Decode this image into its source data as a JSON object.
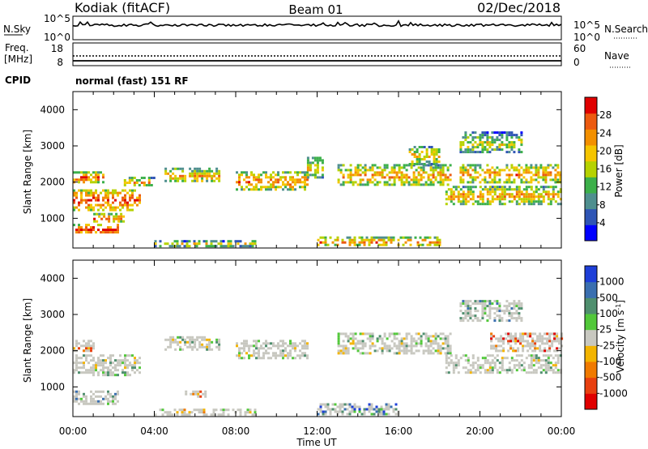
{
  "header": {
    "site": "Kodiak (fitACF)",
    "beam": "Beam 01",
    "date": "02/Dec/2018"
  },
  "noise_panel": {
    "left_label": "N.Sky",
    "left_ticks": [
      "10^5",
      "10^0"
    ],
    "right_label": "N.Search",
    "right_ticks": [
      "10^5",
      "10^0"
    ]
  },
  "freq_panel": {
    "left_label_1": "Freq.",
    "left_label_2": "[MHz]",
    "left_ticks": [
      "18",
      "8"
    ],
    "right_label": "Nave",
    "right_ticks": [
      "60",
      "0"
    ]
  },
  "cpid": {
    "label": "CPID",
    "text": "normal (fast) 151 RF"
  },
  "chart_data": [
    {
      "type": "heatmap",
      "name": "Power",
      "ylabel": "Slant Range [km]",
      "xlabel": "",
      "ylim": [
        180,
        4500
      ],
      "yticks": [
        1000,
        2000,
        3000,
        4000
      ],
      "xlim": [
        0,
        24
      ],
      "xticks": [
        0,
        4,
        8,
        12,
        16,
        20,
        24
      ],
      "colorbar": {
        "label": "Power [dB]",
        "ticks": [
          "4",
          "8",
          "12",
          "16",
          "20",
          "24",
          "28"
        ],
        "colors": [
          "#0000ff",
          "#2f55b5",
          "#4f8f8f",
          "#3cb04a",
          "#b6d200",
          "#f5c500",
          "#f39000",
          "#ec5a10",
          "#e00000"
        ]
      },
      "bands": [
        {
          "x0": 0,
          "x1": 3.3,
          "y0": 1250,
          "y1": 1800,
          "level": 0.7
        },
        {
          "x0": 0,
          "x1": 1.5,
          "y0": 2000,
          "y1": 2300,
          "level": 0.65
        },
        {
          "x0": 0,
          "x1": 2.2,
          "y0": 600,
          "y1": 850,
          "level": 0.8
        },
        {
          "x0": 1.0,
          "x1": 2.5,
          "y0": 900,
          "y1": 1150,
          "level": 0.55
        },
        {
          "x0": 2.5,
          "x1": 4.0,
          "y0": 1900,
          "y1": 2150,
          "level": 0.45
        },
        {
          "x0": 4.5,
          "x1": 7.2,
          "y0": 2000,
          "y1": 2400,
          "level": 0.4
        },
        {
          "x0": 8.0,
          "x1": 11.5,
          "y0": 1800,
          "y1": 2300,
          "level": 0.55
        },
        {
          "x0": 11.5,
          "x1": 12.3,
          "y0": 2100,
          "y1": 2700,
          "level": 0.3
        },
        {
          "x0": 13.0,
          "x1": 18.5,
          "y0": 1900,
          "y1": 2500,
          "level": 0.45
        },
        {
          "x0": 16.5,
          "x1": 18.0,
          "y0": 2500,
          "y1": 3000,
          "level": 0.35
        },
        {
          "x0": 18.3,
          "x1": 24.0,
          "y0": 1400,
          "y1": 1900,
          "level": 0.45
        },
        {
          "x0": 19.0,
          "x1": 24.0,
          "y0": 2000,
          "y1": 2500,
          "level": 0.5
        },
        {
          "x0": 19.0,
          "x1": 22.0,
          "y0": 2800,
          "y1": 3400,
          "level": 0.2
        },
        {
          "x0": 4.0,
          "x1": 9.0,
          "y0": 250,
          "y1": 400,
          "level": 0.3
        },
        {
          "x0": 12.0,
          "x1": 18.0,
          "y0": 250,
          "y1": 500,
          "level": 0.55
        }
      ]
    },
    {
      "type": "heatmap",
      "name": "Velocity",
      "ylabel": "Slant Range [km]",
      "xlabel": "Time UT",
      "ylim": [
        180,
        4500
      ],
      "yticks": [
        1000,
        2000,
        3000,
        4000
      ],
      "xlim": [
        0,
        24
      ],
      "xticks": [
        0,
        4,
        8,
        12,
        16,
        20,
        24
      ],
      "xticklabels": [
        "00:00",
        "04:00",
        "08:00",
        "12:00",
        "16:00",
        "20:00",
        "00:00"
      ],
      "colorbar": {
        "label": "Velocity [m s-1]",
        "ticks": [
          "1000",
          "500",
          "100",
          "25",
          "-25",
          "-100",
          "-500",
          "-1000"
        ],
        "colors": [
          "#1e3fd8",
          "#3a6fb0",
          "#4f8f6e",
          "#52c83a",
          "#c8c8c0",
          "#f3b400",
          "#f07a00",
          "#e84010",
          "#e00000"
        ]
      },
      "bands": [
        {
          "x0": 0,
          "x1": 3.3,
          "y0": 1350,
          "y1": 1900,
          "level": 0.5
        },
        {
          "x0": 0,
          "x1": 1.0,
          "y0": 2000,
          "y1": 2300,
          "level": 0.8
        },
        {
          "x0": 0,
          "x1": 2.2,
          "y0": 550,
          "y1": 900,
          "level": 0.4
        },
        {
          "x0": 4.5,
          "x1": 7.2,
          "y0": 2000,
          "y1": 2400,
          "level": 0.5
        },
        {
          "x0": 8.0,
          "x1": 11.5,
          "y0": 1800,
          "y1": 2300,
          "level": 0.5
        },
        {
          "x0": 13.0,
          "x1": 18.5,
          "y0": 1900,
          "y1": 2500,
          "level": 0.5
        },
        {
          "x0": 18.3,
          "x1": 24.0,
          "y0": 1400,
          "y1": 1900,
          "level": 0.5
        },
        {
          "x0": 20.5,
          "x1": 24.0,
          "y0": 2000,
          "y1": 2500,
          "level": 0.85
        },
        {
          "x0": 19.0,
          "x1": 22.0,
          "y0": 2800,
          "y1": 3400,
          "level": 0.4
        },
        {
          "x0": 5.5,
          "x1": 6.5,
          "y0": 700,
          "y1": 900,
          "level": 0.8
        },
        {
          "x0": 12.0,
          "x1": 16.0,
          "y0": 250,
          "y1": 550,
          "level": 0.3
        },
        {
          "x0": 4.0,
          "x1": 9.0,
          "y0": 250,
          "y1": 400,
          "level": 0.6
        }
      ]
    }
  ]
}
